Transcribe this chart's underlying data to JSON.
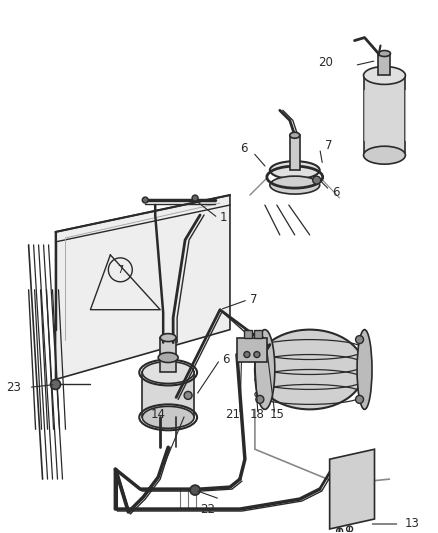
{
  "bg_color": "#f5f5f5",
  "line_color": "#2a2a2a",
  "label_color": "#2a2a2a",
  "fig_width": 4.39,
  "fig_height": 5.33,
  "dpi": 100
}
